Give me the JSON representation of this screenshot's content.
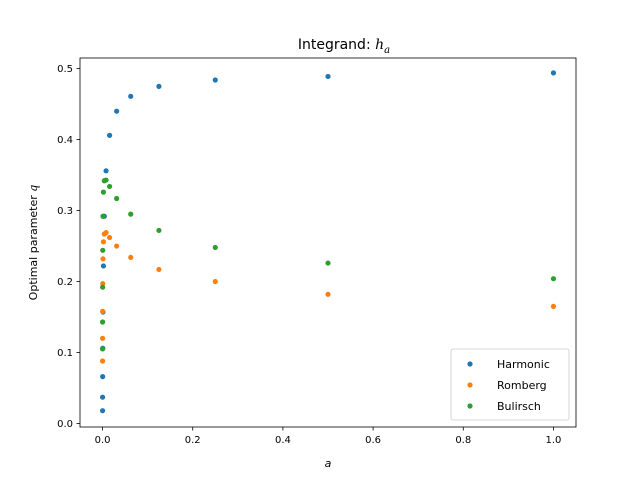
{
  "chart_data": {
    "type": "scatter",
    "title_main": "Integrand: ",
    "title_symbol": "h",
    "title_subscript": "a",
    "xlabel": "a",
    "ylabel_main": "Optimal parameter ",
    "ylabel_symbol": "q",
    "xlim": [
      -0.05,
      1.05
    ],
    "ylim": [
      -0.005,
      0.515
    ],
    "xticks": [
      0.0,
      0.2,
      0.4,
      0.6,
      0.8,
      1.0
    ],
    "xtick_labels": [
      "0.0",
      "0.2",
      "0.4",
      "0.6",
      "0.8",
      "1.0"
    ],
    "yticks": [
      0.0,
      0.1,
      0.2,
      0.3,
      0.4,
      0.5
    ],
    "ytick_labels": [
      "0.0",
      "0.1",
      "0.2",
      "0.3",
      "0.4",
      "0.5"
    ],
    "grid": false,
    "legend_position": "lower-right",
    "series": [
      {
        "name": "Harmonic",
        "color": "#1f77b4",
        "points": [
          [
            1.0,
            0.494
          ],
          [
            0.5,
            0.489
          ],
          [
            0.25,
            0.484
          ],
          [
            0.125,
            0.475
          ],
          [
            0.0625,
            0.461
          ],
          [
            0.03125,
            0.44
          ],
          [
            0.015625,
            0.406
          ],
          [
            0.0078125,
            0.356
          ],
          [
            0.00390625,
            0.292
          ],
          [
            0.001953125,
            0.222
          ],
          [
            0.0009765625,
            0.157
          ],
          [
            0.00048828125,
            0.106
          ],
          [
            0.000244140625,
            0.066
          ],
          [
            0.0001220703125,
            0.037
          ],
          [
            6.103515625e-05,
            0.018
          ]
        ]
      },
      {
        "name": "Romberg",
        "color": "#ff7f0e",
        "points": [
          [
            1.0,
            0.165
          ],
          [
            0.5,
            0.182
          ],
          [
            0.25,
            0.2
          ],
          [
            0.125,
            0.217
          ],
          [
            0.0625,
            0.234
          ],
          [
            0.03125,
            0.25
          ],
          [
            0.015625,
            0.262
          ],
          [
            0.0078125,
            0.269
          ],
          [
            0.00390625,
            0.267
          ],
          [
            0.001953125,
            0.256
          ],
          [
            0.0009765625,
            0.232
          ],
          [
            0.00048828125,
            0.197
          ],
          [
            0.000244140625,
            0.158
          ],
          [
            0.0001220703125,
            0.12
          ],
          [
            6.103515625e-05,
            0.088
          ]
        ]
      },
      {
        "name": "Bulirsch",
        "color": "#2ca02c",
        "points": [
          [
            1.0,
            0.204
          ],
          [
            0.5,
            0.226
          ],
          [
            0.25,
            0.248
          ],
          [
            0.125,
            0.272
          ],
          [
            0.0625,
            0.295
          ],
          [
            0.03125,
            0.317
          ],
          [
            0.015625,
            0.334
          ],
          [
            0.0078125,
            0.343
          ],
          [
            0.00390625,
            0.342
          ],
          [
            0.001953125,
            0.326
          ],
          [
            0.0009765625,
            0.292
          ],
          [
            0.00048828125,
            0.244
          ],
          [
            0.000244140625,
            0.192
          ],
          [
            0.0001220703125,
            0.143
          ],
          [
            6.103515625e-05,
            0.105
          ]
        ]
      }
    ]
  }
}
